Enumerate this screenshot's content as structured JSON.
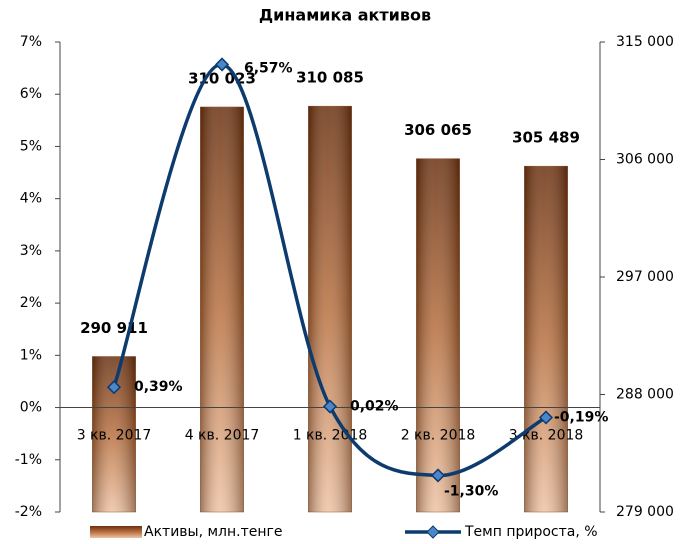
{
  "chart_data": {
    "type": "combo",
    "title": "Динамика активов",
    "categories": [
      "3 кв. 2017",
      "4 кв. 2017",
      "1 кв. 2018",
      "2 кв. 2018",
      "3 кв. 2018"
    ],
    "series": [
      {
        "name": "Активы, млн.тенге",
        "type": "bar",
        "axis": "y2",
        "color": "#8b4a1f",
        "values": [
          290911,
          310023,
          310085,
          306065,
          305489
        ],
        "value_labels": [
          "290 911",
          "310 023",
          "310 085",
          "306 065",
          "305 489"
        ]
      },
      {
        "name": "Темп прироста, %",
        "type": "line",
        "axis": "y",
        "color": "#0d3b6e",
        "label_color": "#e8141b",
        "values": [
          0.39,
          6.57,
          0.02,
          -1.3,
          -0.19
        ],
        "value_labels": [
          "0,39%",
          "6,57%",
          "0,02%",
          "-1,30%",
          "-0,19%"
        ]
      }
    ],
    "ylim": [
      -2,
      7
    ],
    "yticks": [
      {
        "value": -2,
        "label": "-2%"
      },
      {
        "value": -1,
        "label": "-1%"
      },
      {
        "value": 0,
        "label": "0%"
      },
      {
        "value": 1,
        "label": "1%"
      },
      {
        "value": 2,
        "label": "2%"
      },
      {
        "value": 3,
        "label": "3%"
      },
      {
        "value": 4,
        "label": "4%"
      },
      {
        "value": 5,
        "label": "5%"
      },
      {
        "value": 6,
        "label": "6%"
      },
      {
        "value": 7,
        "label": "7%"
      }
    ],
    "y2lim": [
      279000,
      315000
    ],
    "y2ticks": [
      {
        "value": 279000,
        "label": "279 000"
      },
      {
        "value": 288000,
        "label": "288 000"
      },
      {
        "value": 297000,
        "label": "297 000"
      },
      {
        "value": 306000,
        "label": "306 000"
      },
      {
        "value": 315000,
        "label": "315 000"
      }
    ]
  }
}
